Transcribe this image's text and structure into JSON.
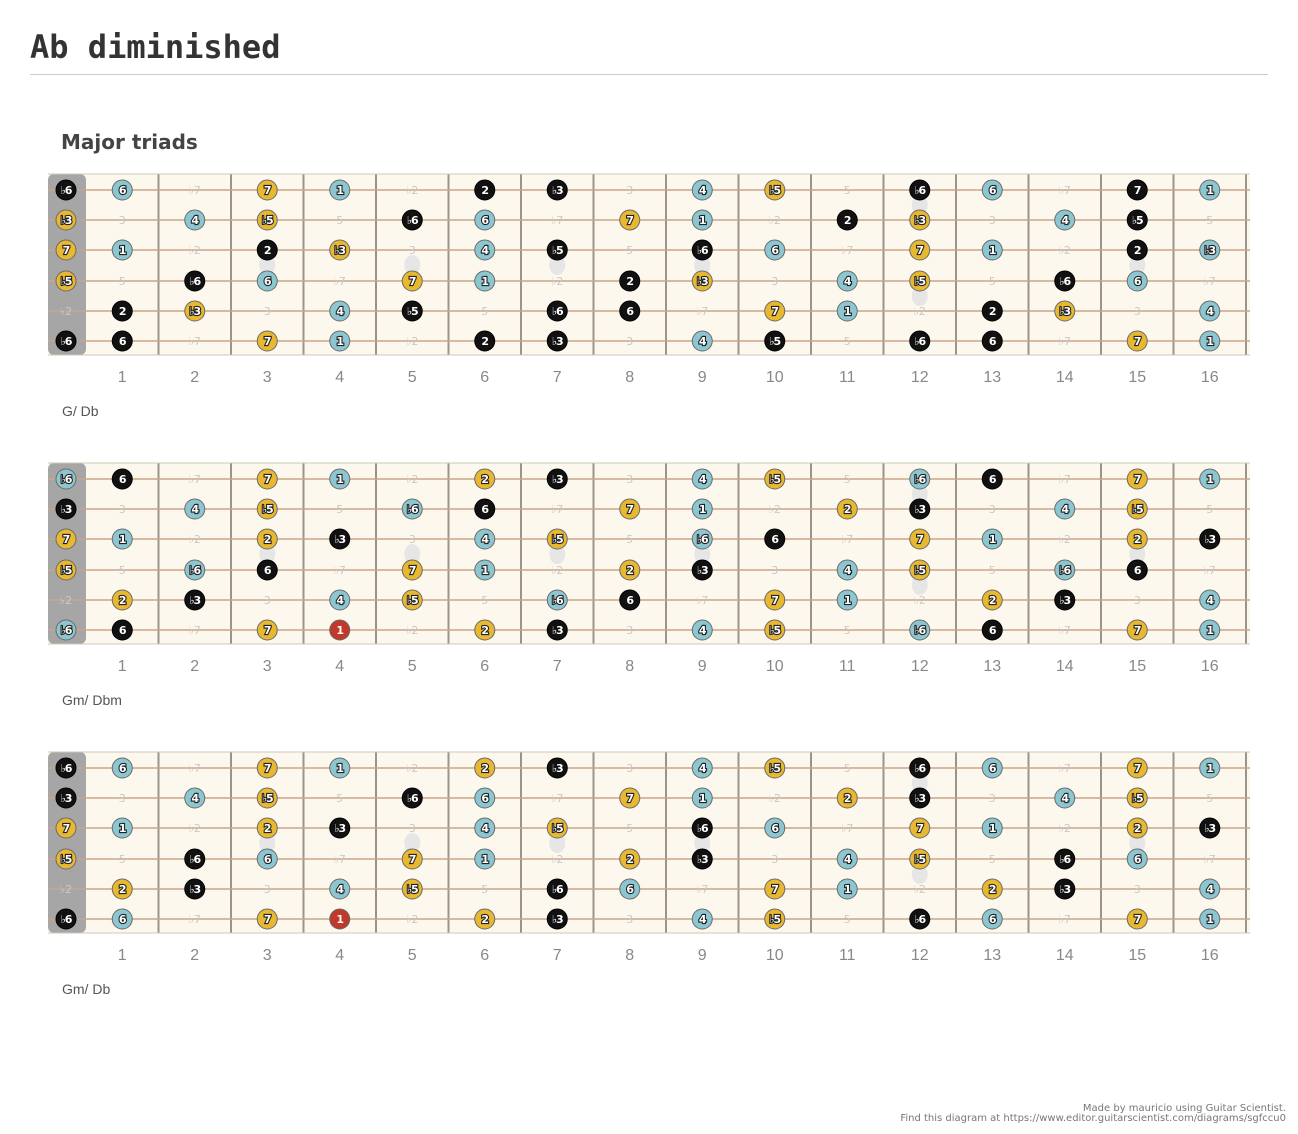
{
  "page": {
    "title": "Ab diminished",
    "section": "Major triads",
    "credit_line1": "Made by mauricio using Guitar Scientist.",
    "credit_line2": "Find this diagram at https://www.editor.guitarscientist.com/diagrams/sgfccu0"
  },
  "colors": {
    "black": "#111111",
    "blue": "#8cc7d1",
    "gold": "#e8b830",
    "red": "#c0392b",
    "fretboard": "#fdf8ed",
    "nut": "#a6a6a6"
  },
  "fret_numbers": [
    "1",
    "2",
    "3",
    "4",
    "5",
    "6",
    "7",
    "8",
    "9",
    "10",
    "11",
    "12",
    "13",
    "14",
    "15",
    "16"
  ],
  "string_pattern": [
    [
      "♭6",
      "6",
      "♭7",
      "7",
      "1",
      "♭2",
      "2",
      "♭3",
      "3",
      "4",
      "♭5",
      "5",
      "♭6",
      "6",
      "♭7",
      "7",
      "1"
    ],
    [
      "♭3",
      "3",
      "4",
      "♭5",
      "5",
      "♭6",
      "6",
      "♭7",
      "7",
      "1",
      "♭2",
      "2",
      "♭3",
      "3",
      "4",
      "♭5",
      "5"
    ],
    [
      "7",
      "1",
      "♭2",
      "2",
      "♭3",
      "3",
      "4",
      "♭5",
      "5",
      "♭6",
      "6",
      "♭7",
      "7",
      "1",
      "♭2",
      "2",
      "♭3"
    ],
    [
      "♭5",
      "5",
      "♭6",
      "6",
      "♭7",
      "7",
      "1",
      "♭2",
      "2",
      "♭3",
      "3",
      "4",
      "♭5",
      "5",
      "♭6",
      "6",
      "♭7"
    ],
    [
      "♭2",
      "2",
      "♭3",
      "3",
      "4",
      "♭5",
      "5",
      "♭6",
      "6",
      "♭7",
      "7",
      "1",
      "♭2",
      "2",
      "♭3",
      "3",
      "4"
    ],
    [
      "♭6",
      "6",
      "♭7",
      "7",
      "1",
      "♭2",
      "2",
      "♭3",
      "3",
      "4",
      "♭5",
      "5",
      "♭6",
      "6",
      "♭7",
      "7",
      "1"
    ]
  ],
  "diagrams": [
    {
      "caption": "G/ Db",
      "strings": [
        [
          "k",
          "b",
          "-",
          "g",
          "b",
          "-",
          "k",
          "k",
          "-",
          "b",
          "g",
          "-",
          "k",
          "b",
          "-",
          "k",
          "b"
        ],
        [
          "g",
          "-",
          "b",
          "g",
          "-",
          "k",
          "b",
          "-",
          "g",
          "b",
          "-",
          "k",
          "g",
          "-",
          "b",
          "k",
          "-"
        ],
        [
          "g",
          "b",
          "-",
          "k",
          "g",
          "-",
          "b",
          "k",
          "-",
          "k",
          "b",
          "-",
          "g",
          "b",
          "-",
          "k",
          "b"
        ],
        [
          "g",
          "-",
          "k",
          "b",
          "-",
          "g",
          "b",
          "-",
          "k",
          "g",
          "-",
          "b",
          "g",
          "-",
          "k",
          "b",
          "-"
        ],
        [
          "-",
          "k",
          "g",
          "-",
          "b",
          "k",
          "-",
          "k",
          "k",
          "-",
          "g",
          "b",
          "-",
          "k",
          "g",
          "-",
          "b"
        ],
        [
          "k",
          "k",
          "-",
          "g",
          "b",
          "-",
          "k",
          "k",
          "-",
          "b",
          "k",
          "-",
          "k",
          "k",
          "-",
          "g",
          "b"
        ]
      ]
    },
    {
      "caption": "Gm/ Dbm",
      "strings": [
        [
          "b",
          "k",
          "-",
          "g",
          "b",
          "-",
          "g",
          "k",
          "-",
          "b",
          "g",
          "-",
          "b",
          "k",
          "-",
          "g",
          "b"
        ],
        [
          "k",
          "-",
          "b",
          "g",
          "-",
          "b",
          "k",
          "-",
          "g",
          "b",
          "-",
          "g",
          "k",
          "-",
          "b",
          "g",
          "-"
        ],
        [
          "g",
          "b",
          "-",
          "g",
          "k",
          "-",
          "b",
          "g",
          "-",
          "b",
          "k",
          "-",
          "g",
          "b",
          "-",
          "g",
          "k"
        ],
        [
          "g",
          "-",
          "b",
          "k",
          "-",
          "g",
          "b",
          "-",
          "g",
          "k",
          "-",
          "b",
          "g",
          "-",
          "b",
          "k",
          "-"
        ],
        [
          "-",
          "g",
          "k",
          "-",
          "b",
          "g",
          "-",
          "b",
          "k",
          "-",
          "g",
          "b",
          "-",
          "g",
          "k",
          "-",
          "b"
        ],
        [
          "b",
          "k",
          "-",
          "g",
          "r",
          "-",
          "g",
          "k",
          "-",
          "b",
          "g",
          "-",
          "b",
          "k",
          "-",
          "g",
          "b"
        ]
      ]
    },
    {
      "caption": "Gm/ Db",
      "strings": [
        [
          "k",
          "b",
          "-",
          "g",
          "b",
          "-",
          "g",
          "k",
          "-",
          "b",
          "g",
          "-",
          "k",
          "b",
          "-",
          "g",
          "b"
        ],
        [
          "k",
          "-",
          "b",
          "g",
          "-",
          "k",
          "b",
          "-",
          "g",
          "b",
          "-",
          "g",
          "k",
          "-",
          "b",
          "g",
          "-"
        ],
        [
          "g",
          "b",
          "-",
          "g",
          "k",
          "-",
          "b",
          "g",
          "-",
          "k",
          "b",
          "-",
          "g",
          "b",
          "-",
          "g",
          "k"
        ],
        [
          "g",
          "-",
          "k",
          "b",
          "-",
          "g",
          "b",
          "-",
          "g",
          "k",
          "-",
          "b",
          "g",
          "-",
          "k",
          "b",
          "-"
        ],
        [
          "-",
          "g",
          "k",
          "-",
          "b",
          "g",
          "-",
          "k",
          "b",
          "-",
          "g",
          "b",
          "-",
          "g",
          "k",
          "-",
          "b"
        ],
        [
          "k",
          "b",
          "-",
          "g",
          "r",
          "-",
          "g",
          "k",
          "-",
          "b",
          "g",
          "-",
          "k",
          "b",
          "-",
          "g",
          "b"
        ]
      ]
    }
  ]
}
